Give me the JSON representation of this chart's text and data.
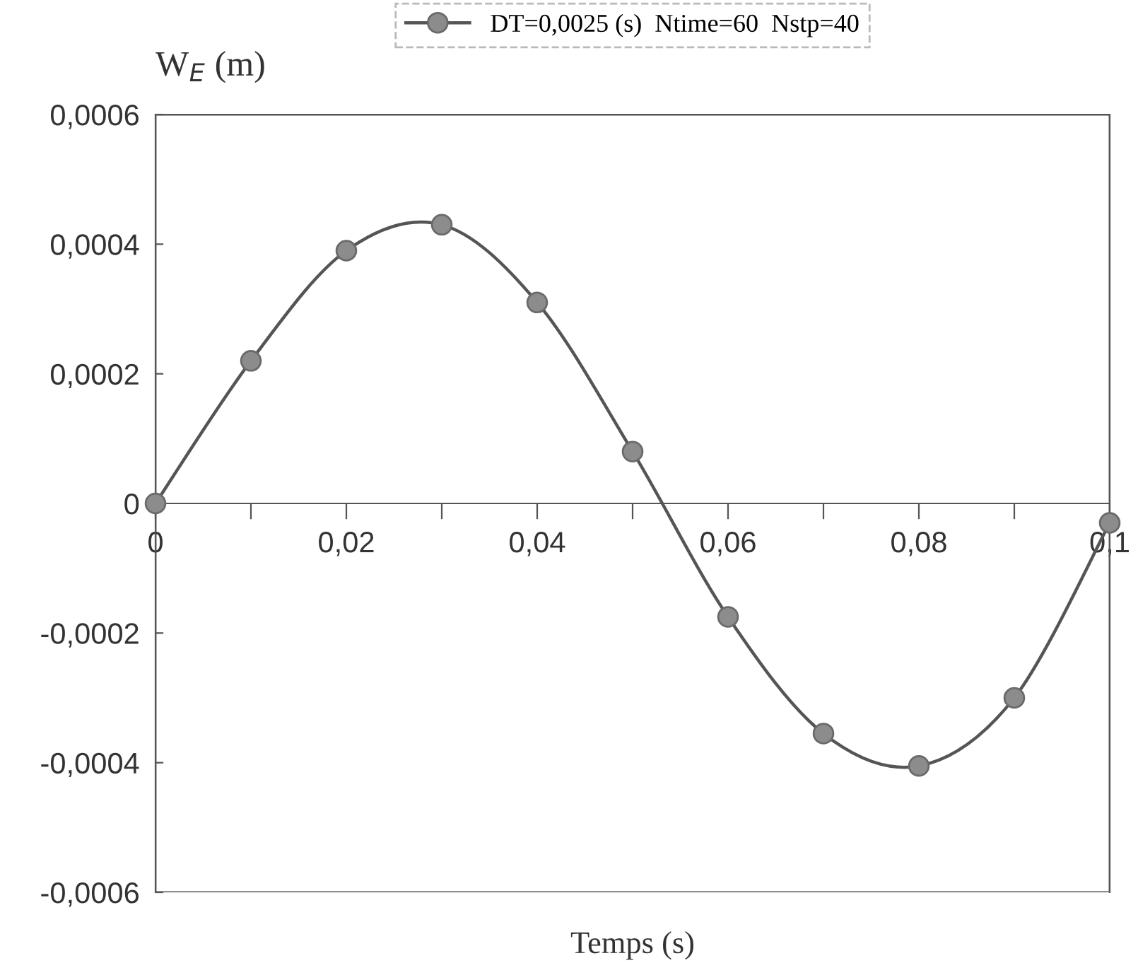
{
  "chart_data": {
    "type": "line",
    "xlabel": "Temps (s)",
    "ylabel": "W$_{E}$ (m)",
    "x": [
      0,
      0.01,
      0.02,
      0.03,
      0.04,
      0.05,
      0.06,
      0.07,
      0.08,
      0.09,
      0.1
    ],
    "series": [
      {
        "name": "DT=0,0025 (s)  Ntime=60  Nstp=40",
        "color": "#555555",
        "values": [
          0,
          0.00022,
          0.00039,
          0.00043,
          0.00031,
          8e-05,
          -0.000175,
          -0.000355,
          -0.000405,
          -0.0003,
          -3e-05
        ]
      }
    ],
    "xlim": [
      0,
      0.1
    ],
    "ylim": [
      -0.0006,
      0.0006
    ],
    "xticks": [
      {
        "value": 0,
        "label": "0"
      },
      {
        "value": 0.01,
        "label": null
      },
      {
        "value": 0.02,
        "label": "0,02"
      },
      {
        "value": 0.03,
        "label": null
      },
      {
        "value": 0.04,
        "label": "0,04"
      },
      {
        "value": 0.05,
        "label": null
      },
      {
        "value": 0.06,
        "label": "0,06"
      },
      {
        "value": 0.07,
        "label": null
      },
      {
        "value": 0.08,
        "label": "0,08"
      },
      {
        "value": 0.09,
        "label": null
      },
      {
        "value": 0.1,
        "label": "0,1"
      }
    ],
    "yticks": [
      {
        "value": -0.0006,
        "label": "-0,0006"
      },
      {
        "value": -0.0004,
        "label": "-0,0004"
      },
      {
        "value": -0.0002,
        "label": "-0,0002"
      },
      {
        "value": 0,
        "label": "0"
      },
      {
        "value": 0.0002,
        "label": "0,0002"
      },
      {
        "value": 0.0004,
        "label": "0,0004"
      },
      {
        "value": 0.0006,
        "label": "0,0006"
      }
    ],
    "grid": false,
    "legend": "top",
    "marker": "circle",
    "line_style": "solid"
  }
}
